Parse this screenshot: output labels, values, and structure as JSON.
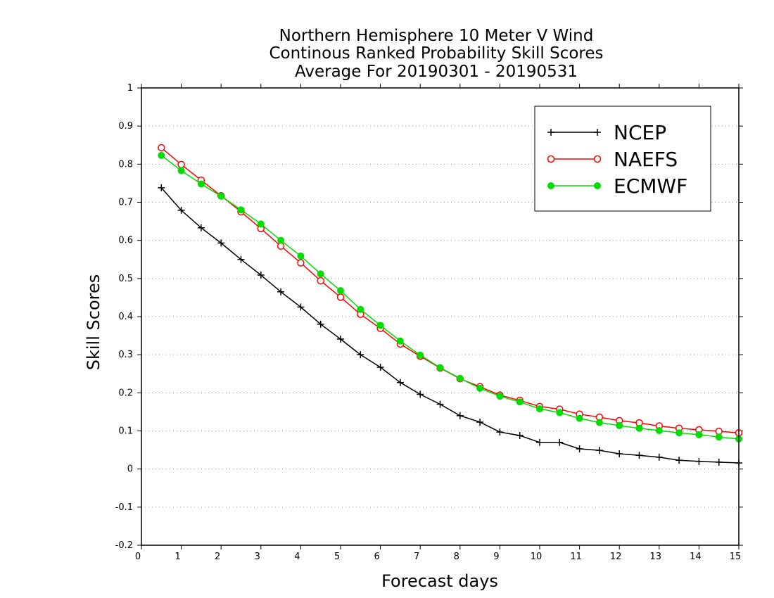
{
  "chart_data": {
    "type": "line",
    "title": [
      "Northern Hemisphere 10 Meter V Wind",
      "Continous Ranked Probability Skill Scores",
      "Average For 20190301 - 20190531"
    ],
    "xlabel": "Forecast days",
    "ylabel": "Skill Scores",
    "xlim": [
      0,
      15
    ],
    "ylim": [
      -0.2,
      1
    ],
    "xticks": [
      0,
      1,
      2,
      3,
      4,
      5,
      6,
      7,
      8,
      9,
      10,
      11,
      12,
      13,
      14,
      15
    ],
    "yticks": [
      -0.2,
      -0.1,
      0,
      0.1,
      0.2,
      0.3,
      0.4,
      0.5,
      0.6,
      0.7,
      0.8,
      0.9,
      1
    ],
    "ytick_labels": [
      "-0.2",
      "-0.1",
      "0",
      "0.1",
      "0.2",
      "0.3",
      "0.4",
      "0.5",
      "0.6",
      "0.7",
      "0.8",
      "0.9",
      "1"
    ],
    "grid": "horizontal dotted",
    "legend_position": "top-right",
    "x": [
      0.5,
      1,
      1.5,
      2,
      2.5,
      3,
      3.5,
      4,
      4.5,
      5,
      5.5,
      6,
      6.5,
      7,
      7.5,
      8,
      8.5,
      9,
      9.5,
      10,
      10.5,
      11,
      11.5,
      12,
      12.5,
      13,
      13.5,
      14,
      14.5,
      15
    ],
    "series": [
      {
        "name": "NCEP",
        "color": "#000000",
        "marker": "plus",
        "values": [
          0.738,
          0.679,
          0.633,
          0.593,
          0.55,
          0.509,
          0.465,
          0.425,
          0.38,
          0.341,
          0.3,
          0.267,
          0.227,
          0.196,
          0.17,
          0.14,
          0.123,
          0.097,
          0.088,
          0.07,
          0.07,
          0.053,
          0.049,
          0.04,
          0.036,
          0.031,
          0.023,
          0.02,
          0.018,
          0.016
        ]
      },
      {
        "name": "NAEFS",
        "color": "#ff0000",
        "marker": "open-circle",
        "values": [
          0.843,
          0.799,
          0.758,
          0.717,
          0.675,
          0.631,
          0.585,
          0.541,
          0.494,
          0.451,
          0.406,
          0.369,
          0.328,
          0.296,
          0.265,
          0.237,
          0.216,
          0.194,
          0.18,
          0.164,
          0.157,
          0.144,
          0.136,
          0.127,
          0.121,
          0.113,
          0.107,
          0.103,
          0.099,
          0.095
        ]
      },
      {
        "name": "ECMWF",
        "color": "#00dd00",
        "marker": "filled-circle",
        "values": [
          0.823,
          0.783,
          0.748,
          0.716,
          0.68,
          0.643,
          0.6,
          0.559,
          0.512,
          0.468,
          0.419,
          0.377,
          0.336,
          0.299,
          0.266,
          0.238,
          0.212,
          0.191,
          0.176,
          0.158,
          0.148,
          0.133,
          0.122,
          0.114,
          0.107,
          0.101,
          0.095,
          0.09,
          0.084,
          0.079
        ]
      }
    ]
  }
}
